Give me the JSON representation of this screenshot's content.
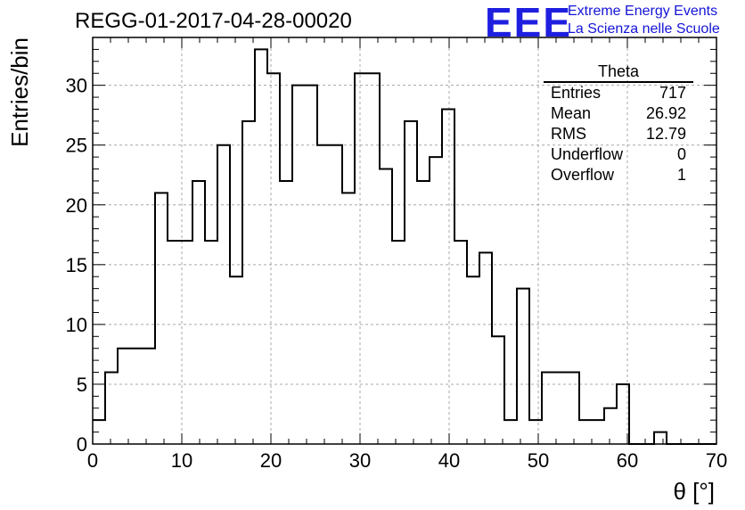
{
  "header": {
    "run_title": "REGG-01-2017-04-28-00020",
    "logo_text": "EEE",
    "brand_line1": "Extreme Energy Events",
    "brand_line2": "La Scienza nelle Scuole",
    "brand_color": "#1f1fe0"
  },
  "stats_box": {
    "title": "Theta",
    "rows": [
      {
        "label": "Entries",
        "value": "717"
      },
      {
        "label": "Mean",
        "value": "26.92"
      },
      {
        "label": "RMS",
        "value": "12.79"
      },
      {
        "label": "Underflow",
        "value": "0"
      },
      {
        "label": "Overflow",
        "value": "1"
      }
    ]
  },
  "chart_data": {
    "type": "bar",
    "subtype": "step-histogram",
    "xlabel": "θ [°]",
    "ylabel": "Entries/bin",
    "xlim": [
      0,
      70
    ],
    "ylim": [
      0,
      34
    ],
    "bin_width": 1.4,
    "xticks": [
      0,
      10,
      20,
      30,
      40,
      50,
      60,
      70
    ],
    "yticks": [
      0,
      5,
      10,
      15,
      20,
      25,
      30
    ],
    "grid": true,
    "line_color": "#000000",
    "values": [
      2,
      6,
      8,
      8,
      8,
      21,
      17,
      17,
      22,
      17,
      25,
      14,
      27,
      33,
      31,
      22,
      30,
      30,
      25,
      25,
      21,
      31,
      31,
      23,
      17,
      27,
      22,
      24,
      28,
      17,
      14,
      16,
      9,
      2,
      13,
      2,
      6,
      6,
      6,
      2,
      2,
      3,
      5,
      0,
      0,
      1,
      0,
      0,
      0,
      0
    ]
  }
}
